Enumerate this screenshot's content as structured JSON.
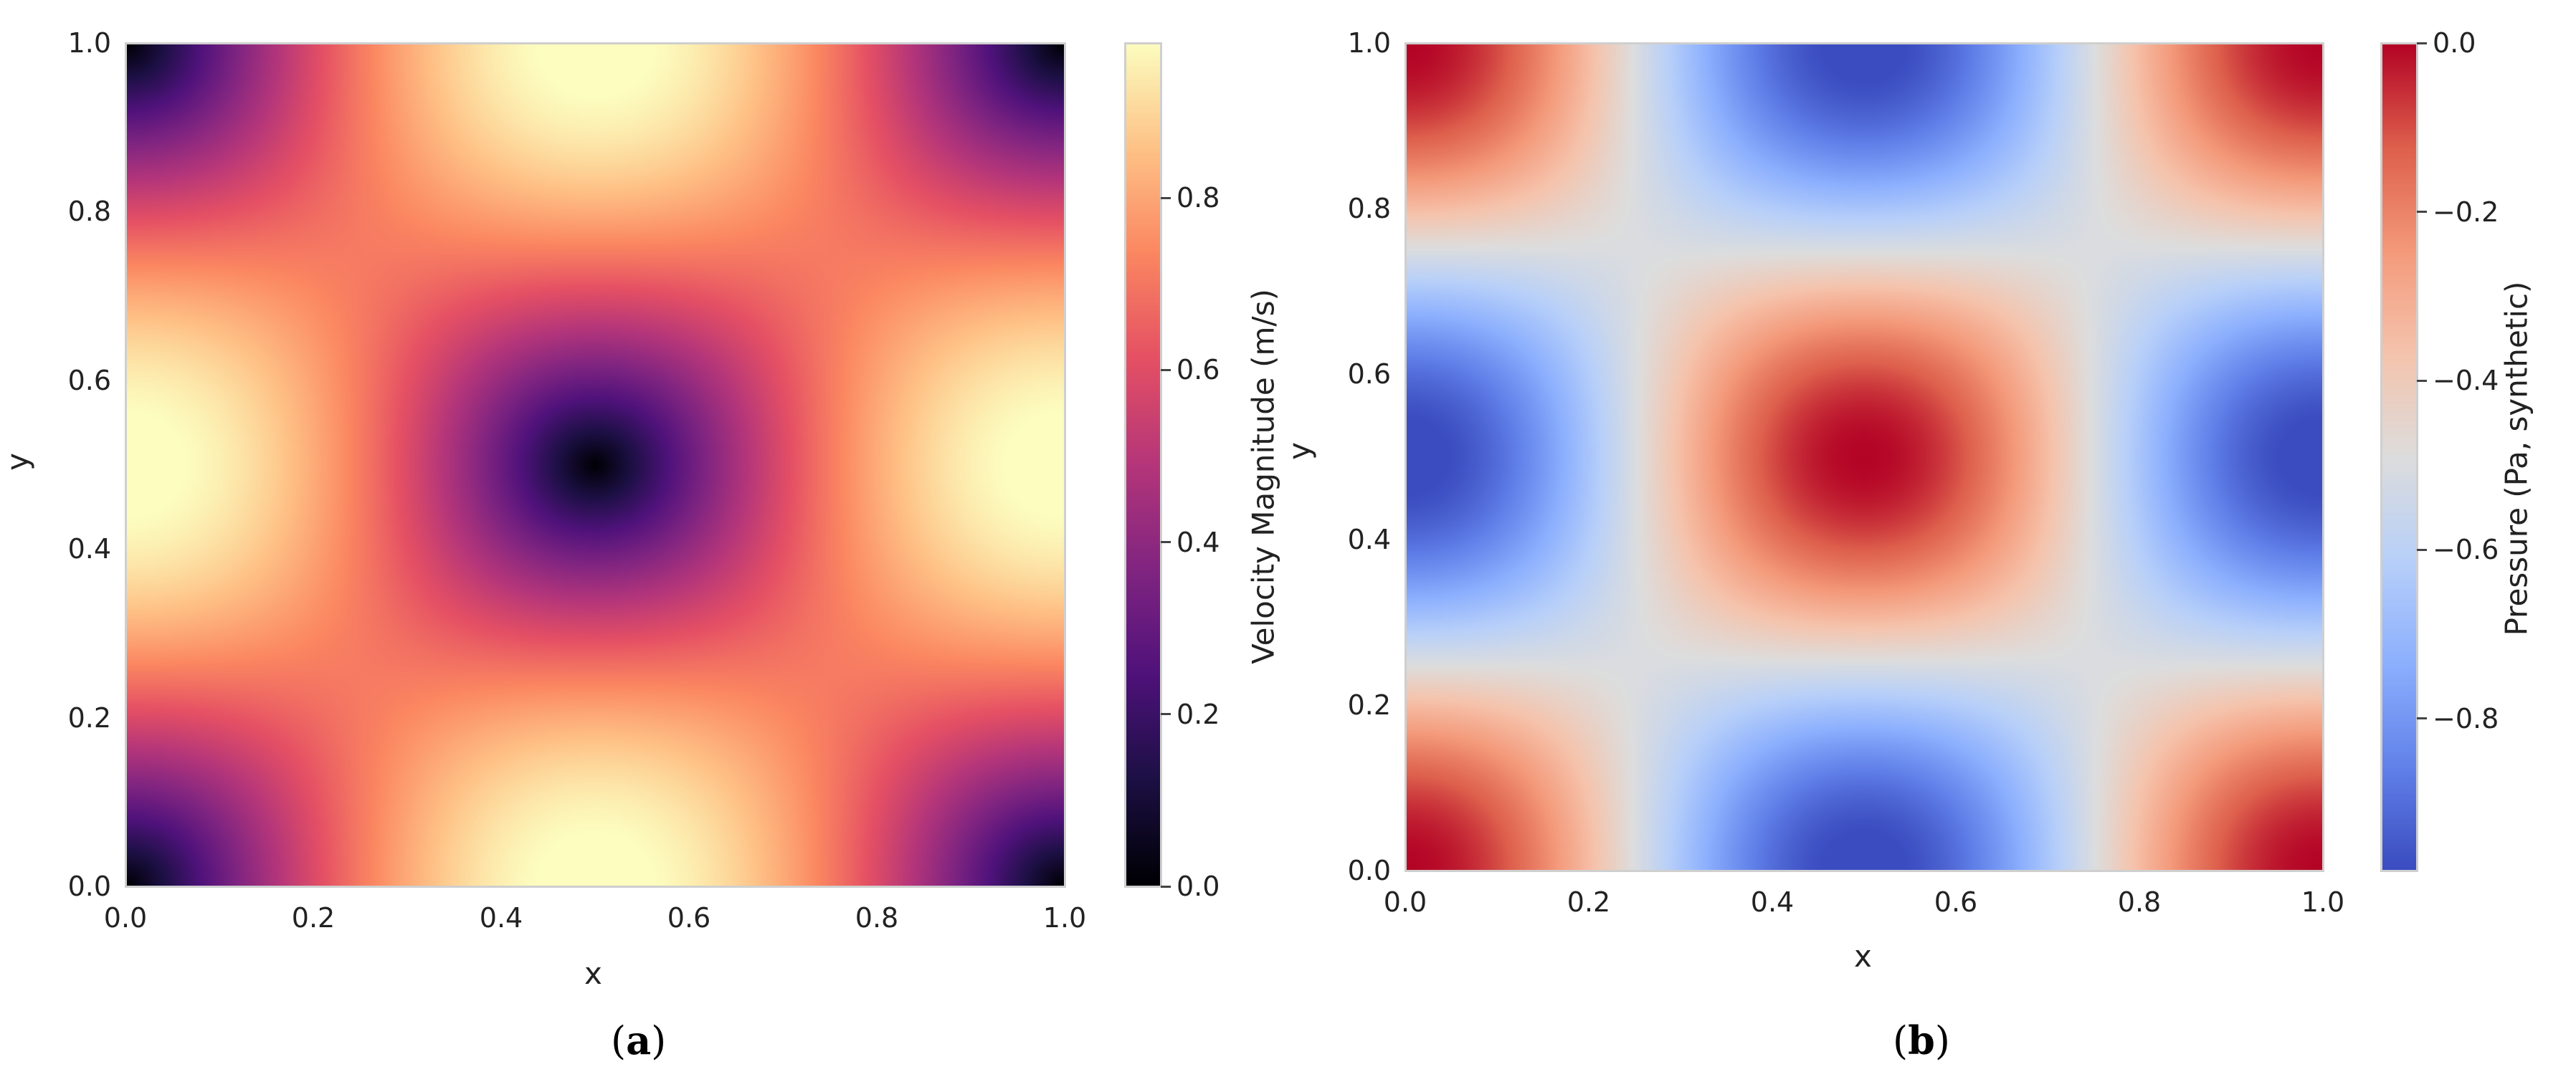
{
  "panels": [
    {
      "id": "a",
      "caption_open": "(",
      "caption_letter": "a",
      "caption_close": ")",
      "xlabel": "x",
      "ylabel": "y",
      "xticks": [
        "0.0",
        "0.2",
        "0.4",
        "0.6",
        "0.8",
        "1.0"
      ],
      "yticks": [
        "0.0",
        "0.2",
        "0.4",
        "0.6",
        "0.8",
        "1.0"
      ],
      "colorbar": {
        "label": "Velocity Magnitude (m/s)",
        "ticks": [
          "0.0",
          "0.2",
          "0.4",
          "0.6",
          "0.8"
        ],
        "colormap": "magma"
      }
    },
    {
      "id": "b",
      "caption_open": "(",
      "caption_letter": "b",
      "caption_close": ")",
      "xlabel": "x",
      "ylabel": "y",
      "xticks": [
        "0.0",
        "0.2",
        "0.4",
        "0.6",
        "0.8",
        "1.0"
      ],
      "yticks": [
        "0.0",
        "0.2",
        "0.4",
        "0.6",
        "0.8",
        "1.0"
      ],
      "colorbar": {
        "label": "Pressure (Pa, synthetic)",
        "ticks": [
          "0.0",
          "−0.2",
          "−0.4",
          "−0.6",
          "−0.8"
        ],
        "colormap": "coolwarm"
      }
    }
  ],
  "chart_data": [
    {
      "type": "heatmap",
      "field": "velocity magnitude",
      "x_range": [
        0,
        1
      ],
      "y_range": [
        0,
        1
      ],
      "value_range": [
        0,
        0.98
      ],
      "colormap": "magma",
      "colorbar_label": "Velocity Magnitude (m/s)",
      "colorbar_ticks": [
        0.0,
        0.2,
        0.4,
        0.6,
        0.8
      ],
      "xlabel": "x",
      "ylabel": "y",
      "grid": false,
      "features": {
        "minimum_at": [
          [
            0.5,
            0.5
          ],
          [
            0,
            0
          ],
          [
            1,
            0
          ],
          [
            0,
            1
          ],
          [
            1,
            1
          ]
        ],
        "maximum_at": [
          [
            0.5,
            0
          ],
          [
            0.5,
            1
          ]
        ],
        "secondary_maximum_at": [
          [
            0,
            0.5
          ],
          [
            1,
            0.5
          ]
        ]
      }
    },
    {
      "type": "heatmap",
      "field": "pressure",
      "x_range": [
        0,
        1
      ],
      "y_range": [
        0,
        1
      ],
      "value_range": [
        -0.98,
        0.0
      ],
      "colormap": "coolwarm",
      "colorbar_label": "Pressure (Pa, synthetic)",
      "colorbar_ticks": [
        0.0,
        -0.2,
        -0.4,
        -0.6,
        -0.8
      ],
      "xlabel": "x",
      "ylabel": "y",
      "grid": false,
      "features": {
        "maximum_at": [
          [
            0.5,
            0.5
          ],
          [
            0,
            0
          ],
          [
            1,
            0
          ],
          [
            0,
            1
          ],
          [
            1,
            1
          ]
        ],
        "minimum_at": [
          [
            0.5,
            0
          ],
          [
            0.5,
            1
          ]
        ],
        "secondary_minimum_at": [
          [
            0,
            0.5
          ],
          [
            1,
            0.5
          ]
        ]
      }
    }
  ]
}
